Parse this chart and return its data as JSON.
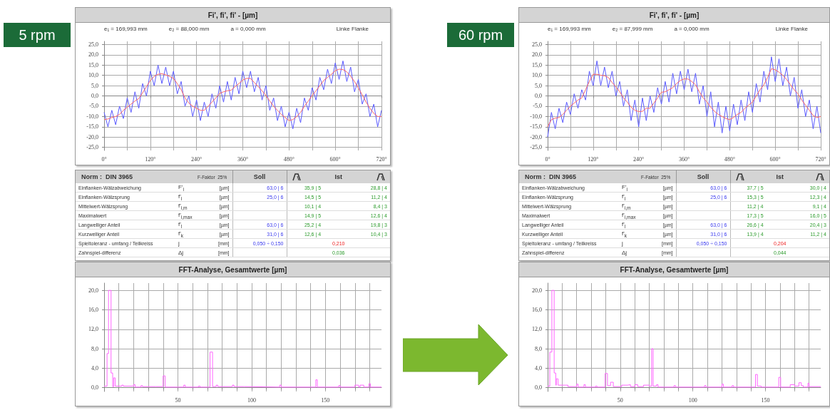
{
  "chart_data": [
    {
      "type": "line",
      "title": "Fi',  fi',  fi' - [µm]",
      "subtitle": "5 rpm",
      "annotations": [
        "e₁ = 169,993 mm",
        "e₂ = 88,000 mm",
        "a = 0,000 mm",
        "Linke Flanke"
      ],
      "xlim": [
        0,
        720
      ],
      "ylim": [
        -26.5,
        26.5
      ],
      "xticks": [
        {
          "value": 0,
          "label": "0°"
        },
        {
          "value": 60,
          "label": null
        },
        {
          "value": 120,
          "label": "120°"
        },
        {
          "value": 180,
          "label": null
        },
        {
          "value": 240,
          "label": "240°"
        },
        {
          "value": 300,
          "label": null
        },
        {
          "value": 360,
          "label": "360°"
        },
        {
          "value": 420,
          "label": null
        },
        {
          "value": 480,
          "label": "480°"
        },
        {
          "value": 540,
          "label": null
        },
        {
          "value": 600,
          "label": "600°"
        },
        {
          "value": 660,
          "label": null
        },
        {
          "value": 720,
          "label": "720°"
        }
      ],
      "yticks": [
        {
          "value": -25,
          "label": "-25,0"
        },
        {
          "value": -20,
          "label": "-20,0"
        },
        {
          "value": -15,
          "label": "-15,0"
        },
        {
          "value": -10,
          "label": "-10,0"
        },
        {
          "value": -5,
          "label": "-5,0"
        },
        {
          "value": 0,
          "label": "0,0"
        },
        {
          "value": 5,
          "label": "5,0"
        },
        {
          "value": 10,
          "label": "10,0"
        },
        {
          "value": 15,
          "label": "15,0"
        },
        {
          "value": 20,
          "label": "20,0"
        },
        {
          "value": 25,
          "label": "25,0"
        }
      ],
      "grid": true,
      "marker": "none",
      "x": [
        0,
        10,
        20,
        30,
        40,
        50,
        60,
        70,
        80,
        90,
        100,
        110,
        120,
        130,
        140,
        150,
        160,
        170,
        180,
        190,
        200,
        210,
        220,
        230,
        240,
        250,
        260,
        270,
        280,
        290,
        300,
        310,
        320,
        330,
        340,
        350,
        360,
        370,
        380,
        390,
        400,
        410,
        420,
        430,
        440,
        450,
        460,
        470,
        480,
        490,
        500,
        510,
        520,
        530,
        540,
        550,
        560,
        570,
        580,
        590,
        600,
        610,
        620,
        630,
        640,
        650,
        660,
        670,
        680,
        690,
        700,
        710,
        720
      ],
      "series": [
        {
          "color": "#5a5aff",
          "values": [
            -8,
            -15,
            -7,
            -14,
            -5,
            -11,
            -1,
            -8,
            2,
            -6,
            6,
            0,
            12,
            5,
            15,
            6,
            14,
            5,
            12,
            1,
            7,
            -5,
            0,
            -10,
            -2,
            -12,
            -3,
            -10,
            1,
            -6,
            5,
            -3,
            7,
            -2,
            9,
            1,
            12,
            4,
            12,
            2,
            9,
            -2,
            5,
            -7,
            -1,
            -12,
            -5,
            -15,
            -8,
            -16,
            -6,
            -13,
            -1,
            -7,
            4,
            -2,
            9,
            3,
            13,
            6,
            16,
            8,
            17,
            7,
            14,
            2,
            8,
            -4,
            1,
            -10,
            -4,
            -15,
            -7
          ]
        },
        {
          "color": "#ff6666",
          "values": [
            -11.5,
            -11.2,
            -10.5,
            -10,
            -9,
            -7,
            -5.5,
            -4,
            -2.5,
            -1.3,
            1.5,
            4.5,
            7.5,
            9.5,
            10.5,
            10.8,
            10.2,
            9.5,
            8.5,
            6,
            3,
            -1,
            -3.5,
            -5,
            -6,
            -7,
            -7,
            -5,
            -3,
            -1,
            1.2,
            2,
            2.5,
            2.8,
            4.5,
            6,
            7.7,
            8.5,
            8.5,
            6.5,
            4.5,
            2.5,
            0.2,
            -2.5,
            -5,
            -7,
            -9,
            -10.5,
            -12,
            -11.5,
            -10,
            -8,
            -5,
            -2.5,
            0.2,
            2.5,
            5,
            7.5,
            9,
            10.5,
            12.2,
            13,
            12.8,
            11.7,
            9.5,
            7,
            3.8,
            0.5,
            -3,
            -6,
            -8.5,
            -10,
            -10
          ]
        }
      ]
    },
    {
      "type": "other",
      "title": "Norm :  DIN 3965",
      "annotations": [
        "F-Faktor  25%",
        "Soll",
        "Ist",
        "Einflanken-Wälzabweichung",
        "F'$_{i}$",
        "[µm]",
        "63,0 | 6",
        "35,9 | 5",
        "28,8 | 4",
        "Einflanken-Wälzsprung",
        "f'$_{i}$",
        "[µm]",
        "25,0 | 6",
        "14,5 | 5",
        "11,2 | 4",
        "Mittelwert-Wälzsprung",
        "f'$_{i,m}$",
        "[µm]",
        null,
        "10,1 | 4",
        "8,4 | 3",
        "Maximalwert",
        "f'$_{i,max}$",
        "[µm]",
        null,
        "14,9 | 5",
        "12,6 | 4",
        "Langwelliger Anteil",
        "f'$_{l}$",
        "[µm]",
        "63,0 | 6",
        "25,2 | 4",
        "19,8 | 3",
        "Kurzwelliger Anteil",
        "f'$_{k}$",
        "[µm]",
        "31,0 | 6",
        "12,6 | 4",
        "10,4 | 3",
        "Spieltoleranz - umfang / Teilkreiss",
        "j",
        "[mm]",
        "0,050 ÷ 0,150",
        "0,210",
        null,
        "Zahnspiel-differenz",
        "Δj",
        "[mm]",
        null,
        "0,036",
        null
      ]
    },
    {
      "type": "step",
      "title": "FFT-Analyse, Gesamtwerte [µm]",
      "xlim": [
        0,
        188
      ],
      "ylim": [
        -0.8,
        21.5
      ],
      "xticks": [
        {
          "value": 0,
          "label": null
        },
        {
          "value": 10,
          "label": null
        },
        {
          "value": 20,
          "label": null
        },
        {
          "value": 30,
          "label": null
        },
        {
          "value": 40,
          "label": null
        },
        50,
        {
          "value": 60,
          "label": null
        },
        {
          "value": 70,
          "label": null
        },
        {
          "value": 80,
          "label": null
        },
        {
          "value": 90,
          "label": null
        },
        100,
        {
          "value": 110,
          "label": null
        },
        {
          "value": 120,
          "label": null
        },
        {
          "value": 130,
          "label": null
        },
        {
          "value": 140,
          "label": null
        },
        150,
        {
          "value": 160,
          "label": null
        },
        {
          "value": 170,
          "label": null
        },
        {
          "value": 180,
          "label": null
        }
      ],
      "yticks": [
        {
          "value": 0,
          "label": "0,0"
        },
        {
          "value": 4,
          "label": "4,0"
        },
        {
          "value": 8,
          "label": "8,0"
        },
        {
          "value": 12,
          "label": "12,0"
        },
        {
          "value": 16,
          "label": "16,0"
        },
        {
          "value": 20,
          "label": "20,0"
        }
      ],
      "grid": true,
      "marker": "none",
      "series": [
        {
          "color": "#ff66ff",
          "x": [
            0,
            2,
            3,
            4.7,
            5.8,
            6.5,
            7.5,
            12,
            13,
            15,
            20,
            21,
            25,
            26,
            35,
            40,
            41.4,
            54,
            55,
            64,
            65,
            71.8,
            73.5,
            76,
            77,
            87,
            88,
            95,
            119,
            120,
            143.5,
            144.5,
            159,
            160,
            170,
            172.5,
            173.5,
            176,
            179.5,
            180.5,
            188
          ],
          "values": [
            0.3,
            7.0,
            20,
            3.0,
            0.2,
            2.0,
            0.3,
            0.5,
            0.3,
            0.3,
            0.6,
            0.1,
            0.4,
            0.2,
            0.2,
            2.4,
            0.1,
            0.5,
            0.1,
            0.3,
            0.1,
            7.3,
            0.2,
            0.5,
            0.2,
            0.5,
            0.2,
            0.1,
            0.5,
            0.1,
            1.6,
            0.1,
            0.4,
            0.1,
            0.5,
            0.1,
            0.5,
            0.1,
            0.8,
            0.1,
            0.1
          ]
        }
      ]
    },
    {
      "type": "line",
      "title": "Fi',  fi',  fi' - [µm]",
      "subtitle": "60 rpm",
      "annotations": [
        "e₁ = 169,993 mm",
        "e₂ = 87,999 mm",
        "a = 0,000 mm",
        "Linke Flanke"
      ],
      "xlim": [
        0,
        720
      ],
      "ylim": [
        -26.5,
        26.5
      ],
      "xticks": [
        {
          "value": 0,
          "label": "0°"
        },
        {
          "value": 60,
          "label": null
        },
        {
          "value": 120,
          "label": "120°"
        },
        {
          "value": 180,
          "label": null
        },
        {
          "value": 240,
          "label": "240°"
        },
        {
          "value": 300,
          "label": null
        },
        {
          "value": 360,
          "label": "360°"
        },
        {
          "value": 420,
          "label": null
        },
        {
          "value": 480,
          "label": "480°"
        },
        {
          "value": 540,
          "label": null
        },
        {
          "value": 600,
          "label": "600°"
        },
        {
          "value": 660,
          "label": null
        },
        {
          "value": 720,
          "label": "720°"
        }
      ],
      "yticks": [
        {
          "value": -25,
          "label": "-25,0"
        },
        {
          "value": -20,
          "label": "-20,0"
        },
        {
          "value": -15,
          "label": "-15,0"
        },
        {
          "value": -10,
          "label": "-10,0"
        },
        {
          "value": -5,
          "label": "-5,0"
        },
        {
          "value": 0,
          "label": "0,0"
        },
        {
          "value": 5,
          "label": "5,0"
        },
        {
          "value": 10,
          "label": "10,0"
        },
        {
          "value": 15,
          "label": "15,0"
        },
        {
          "value": 20,
          "label": "20,0"
        },
        {
          "value": 25,
          "label": "25,0"
        }
      ],
      "grid": true,
      "marker": "none",
      "x": [
        0,
        10,
        20,
        30,
        40,
        50,
        60,
        70,
        80,
        90,
        100,
        110,
        120,
        130,
        140,
        150,
        160,
        170,
        180,
        190,
        200,
        210,
        220,
        230,
        240,
        250,
        260,
        270,
        280,
        290,
        300,
        310,
        320,
        330,
        340,
        350,
        360,
        370,
        380,
        390,
        400,
        410,
        420,
        430,
        440,
        450,
        460,
        470,
        480,
        490,
        500,
        510,
        520,
        530,
        540,
        550,
        560,
        570,
        580,
        590,
        600,
        610,
        620,
        630,
        640,
        650,
        660,
        670,
        680,
        690,
        700,
        710,
        720
      ],
      "series": [
        {
          "color": "#5a5aff",
          "values": [
            -20,
            -8,
            -16,
            -6,
            -13,
            -3,
            -9,
            1,
            -6,
            3,
            -2,
            12,
            5,
            17,
            5,
            14,
            4,
            12,
            0,
            7,
            -5,
            3,
            -12,
            -2,
            -15,
            -1,
            -12,
            0,
            -8,
            4,
            -4,
            7,
            -3,
            11,
            1,
            12,
            3,
            13,
            2,
            11,
            -4,
            5,
            -10,
            2,
            -15,
            -3,
            -18,
            -5,
            -17,
            -4,
            -14,
            -2,
            -12,
            2,
            -8,
            6,
            -3,
            12,
            3,
            19,
            7,
            18,
            5,
            14,
            0,
            9,
            -6,
            3,
            -10,
            -2,
            -16,
            -5,
            -18
          ]
        },
        {
          "color": "#ff6666",
          "values": [
            -15,
            -11.5,
            -10.8,
            -10.5,
            -9,
            -7,
            -5,
            -3.5,
            -2,
            -1,
            3,
            7,
            10.5,
            10.5,
            10,
            9.8,
            9,
            6.5,
            4.4,
            2,
            -1,
            -3,
            -5.5,
            -7,
            -7.6,
            -7.5,
            -6,
            -6,
            -3.5,
            -1,
            1.8,
            2,
            3,
            4,
            6,
            7.5,
            8.3,
            8.2,
            7,
            5.4,
            2,
            -1,
            -2.9,
            -5.5,
            -7.5,
            -9,
            -10,
            -11,
            -11.5,
            -10.5,
            -9,
            -8,
            -6,
            -4.5,
            -3,
            0,
            3,
            5.4,
            9,
            13.2,
            12.7,
            11.5,
            10,
            8,
            5.5,
            3,
            1,
            -2,
            -4.5,
            -7,
            -9.5,
            -10.5,
            -10
          ]
        }
      ]
    },
    {
      "type": "other",
      "title": "Norm :  DIN 3965",
      "annotations": [
        "F-Faktor  25%",
        "Soll",
        "Ist",
        "Einflanken-Wälzabweichung",
        "F'$_{i}$",
        "[µm]",
        "63,0 | 6",
        "37,7 | 5",
        "30,0 | 4",
        "Einflanken-Wälzsprung",
        "f'$_{i}$",
        "[µm]",
        "25,0 | 6",
        "15,3 | 5",
        "12,3 | 4",
        "Mittelwert-Wälzsprung",
        "f'$_{i,m}$",
        "[µm]",
        null,
        "11,2 | 4",
        "9,1 | 4",
        "Maximalwert",
        "f'$_{i,max}$",
        "[µm]",
        null,
        "17,3 | 5",
        "16,0 | 5",
        "Langwelliger Anteil",
        "f'$_{l}$",
        "[µm]",
        "63,0 | 6",
        "26,6 | 4",
        "20,4 | 3",
        "Kurzwelliger Anteil",
        "f'$_{k}$",
        "[µm]",
        "31,0 | 6",
        "13,9 | 4",
        "11,2 | 4",
        "Spieltoleranz - umfang / Teilkreiss",
        "j",
        "[mm]",
        "0,050 ÷ 0,150",
        "0,204",
        null,
        "Zahnspiel-differenz",
        "Δj",
        "[mm]",
        null,
        "0,044",
        null
      ]
    },
    {
      "type": "step",
      "title": "FFT-Analyse, Gesamtwerte [µm]",
      "xlim": [
        0,
        188
      ],
      "ylim": [
        -0.8,
        21.5
      ],
      "xticks": [
        {
          "value": 0,
          "label": null
        },
        {
          "value": 10,
          "label": null
        },
        {
          "value": 20,
          "label": null
        },
        {
          "value": 30,
          "label": null
        },
        {
          "value": 40,
          "label": null
        },
        50,
        {
          "value": 60,
          "label": null
        },
        {
          "value": 70,
          "label": null
        },
        {
          "value": 80,
          "label": null
        },
        {
          "value": 90,
          "label": null
        },
        100,
        {
          "value": 110,
          "label": null
        },
        {
          "value": 120,
          "label": null
        },
        {
          "value": 130,
          "label": null
        },
        {
          "value": 140,
          "label": null
        },
        150,
        {
          "value": 160,
          "label": null
        },
        {
          "value": 170,
          "label": null
        },
        {
          "value": 180,
          "label": null
        }
      ],
      "yticks": [
        {
          "value": 0,
          "label": "0,0"
        },
        {
          "value": 4,
          "label": "4,0"
        },
        {
          "value": 8,
          "label": "8,0"
        },
        {
          "value": 12,
          "label": "12,0"
        },
        {
          "value": 16,
          "label": "16,0"
        },
        {
          "value": 20,
          "label": "20,0"
        }
      ],
      "grid": true,
      "marker": "none",
      "series": [
        {
          "color": "#ff66ff",
          "x": [
            0,
            1.5,
            2.9,
            4.5,
            5.6,
            6,
            7.2,
            12,
            14,
            20,
            21,
            25,
            26,
            33,
            34,
            39.6,
            41.2,
            43.3,
            45.2,
            51,
            55,
            57,
            60,
            62,
            66,
            70,
            71.6,
            72.6,
            75,
            76,
            87,
            88,
            108,
            109,
            120,
            121,
            127,
            128,
            143.1,
            144.4,
            147,
            159.1,
            160.4,
            167,
            170,
            173,
            174.6,
            176,
            179.2,
            180,
            188
          ],
          "values": [
            0.3,
            7.3,
            20,
            3.0,
            0.5,
            1.8,
            0.5,
            0.5,
            0.2,
            0.7,
            0.1,
            0.6,
            0.1,
            0.3,
            0.1,
            2.9,
            0.4,
            1.1,
            0.2,
            0.5,
            0.6,
            0.2,
            0.6,
            0.2,
            0.5,
            0.3,
            8.0,
            0.3,
            0.6,
            0.1,
            0.4,
            0.1,
            0.4,
            0.1,
            0.7,
            0.1,
            0.4,
            0.1,
            2.7,
            0.3,
            0.1,
            2.1,
            0.1,
            0.6,
            0.3,
            1.0,
            0.4,
            0.1,
            0.9,
            0.2,
            0.1
          ]
        }
      ]
    }
  ]
}
